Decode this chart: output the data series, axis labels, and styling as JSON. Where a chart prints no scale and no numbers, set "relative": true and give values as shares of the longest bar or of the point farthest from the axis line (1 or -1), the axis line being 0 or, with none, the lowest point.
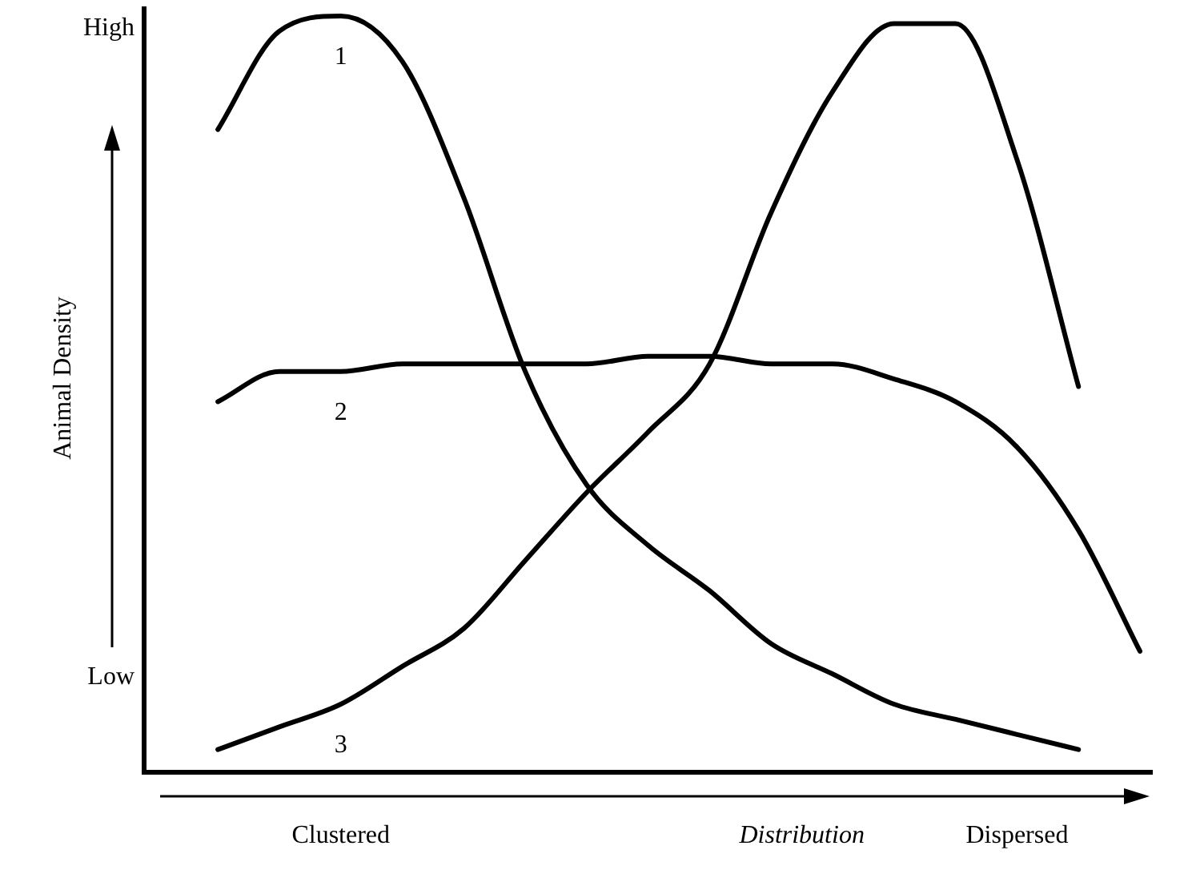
{
  "chart_data": {
    "type": "line",
    "relative": true,
    "xlabel": "Distribution",
    "ylabel": "Animal Density",
    "annotations": [
      "High",
      "Low"
    ],
    "categories": [
      null,
      null,
      "Clustered",
      null,
      null,
      null,
      null,
      null,
      null,
      null,
      null,
      null,
      null,
      "Dispersed",
      null,
      null
    ],
    "series": [
      {
        "name": "1",
        "color": "#000000",
        "values": [
          0.85,
          0.98,
          1.0,
          0.94,
          0.76,
          0.53,
          0.38,
          0.3,
          0.24,
          0.17,
          0.13,
          0.09,
          0.07,
          0.05,
          0.03,
          null
        ]
      },
      {
        "name": "2",
        "color": "#000000",
        "values": [
          0.49,
          0.53,
          0.53,
          0.54,
          0.54,
          0.54,
          0.54,
          0.55,
          0.55,
          0.54,
          0.54,
          0.52,
          0.49,
          0.43,
          0.32,
          0.16
        ]
      },
      {
        "name": "3",
        "color": "#000000",
        "values": [
          0.03,
          0.06,
          0.09,
          0.14,
          0.19,
          0.28,
          0.37,
          0.45,
          0.54,
          0.74,
          0.9,
          0.99,
          0.99,
          0.81,
          0.51,
          null
        ]
      }
    ],
    "grid": false,
    "legend": false,
    "marker": "none",
    "line_style": "solid"
  }
}
